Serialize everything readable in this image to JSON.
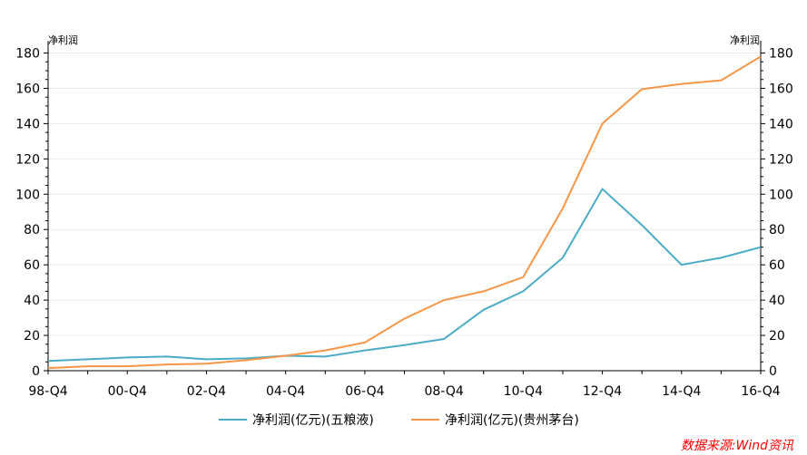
{
  "chart_data": {
    "type": "line",
    "title": "",
    "x": [
      "98-Q4",
      "99-Q4",
      "00-Q4",
      "01-Q4",
      "02-Q4",
      "03-Q4",
      "04-Q4",
      "05-Q4",
      "06-Q4",
      "07-Q4",
      "08-Q4",
      "09-Q4",
      "10-Q4",
      "11-Q4",
      "12-Q4",
      "13-Q4",
      "14-Q4",
      "15-Q4",
      "16-Q4"
    ],
    "x_tick_labels": [
      "98-Q4",
      "00-Q4",
      "02-Q4",
      "04-Q4",
      "06-Q4",
      "08-Q4",
      "10-Q4",
      "12-Q4",
      "14-Q4",
      "16-Q4"
    ],
    "y_left_label": "净利润",
    "y_right_label": "净利润",
    "ylim": [
      0,
      180
    ],
    "y_ticks": [
      0,
      20,
      40,
      60,
      80,
      100,
      120,
      140,
      160,
      180
    ],
    "grid": true,
    "legend_position": "bottom",
    "series": [
      {
        "name": "净利润(亿元)(五粮液)",
        "color": "#4bacc6",
        "axis": "left",
        "values": [
          5.5,
          6.5,
          7.5,
          8,
          6.5,
          7,
          8.5,
          8,
          11.5,
          14.5,
          18,
          34.5,
          45,
          64,
          103,
          82.5,
          60,
          64,
          70
        ]
      },
      {
        "name": "净利润(亿元)(贵州茅台)",
        "color": "#f79646",
        "axis": "right",
        "values": [
          1.5,
          2.5,
          2.5,
          3.5,
          4,
          6,
          8.5,
          11.5,
          16,
          29.5,
          40,
          45,
          53,
          92,
          140,
          159.5,
          162.5,
          164.5,
          178
        ]
      }
    ]
  },
  "source_note": "数据来源:Wind资讯",
  "source_color": "#ff0000"
}
